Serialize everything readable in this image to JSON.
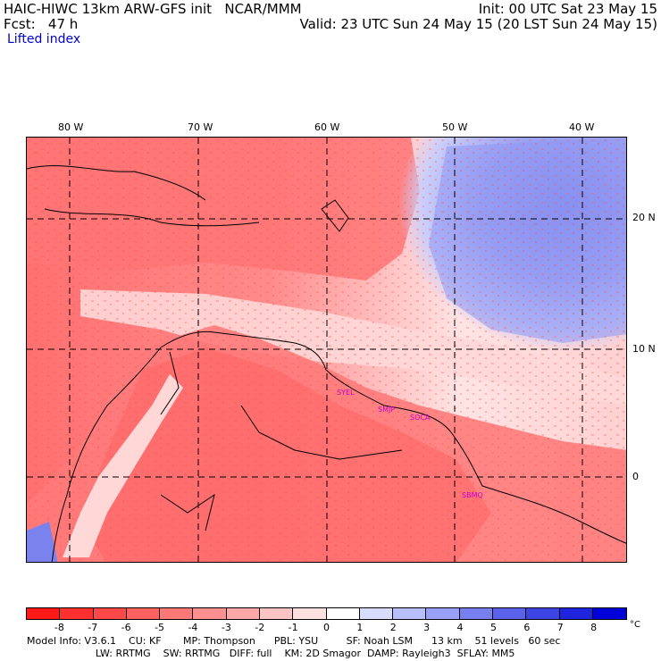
{
  "header": {
    "model_line": "HAIC-HIWC 13km ARW-GFS init   NCAR/MMM",
    "fcst_line": "Fcst:   47 h",
    "init_line": "Init: 00 UTC Sat 23 May 15",
    "valid_line": "Valid: 23 UTC Sun 24 May 15 (20 LST Sun 24 May 15)",
    "field_name": "Lifted index"
  },
  "map": {
    "lon_labels": [
      "80 W",
      "70 W",
      "60 W",
      "50 W",
      "40 W"
    ],
    "lat_labels": [
      "20 N",
      "10 N",
      "0"
    ],
    "stations": [
      "SYEL",
      "SMJP",
      "SOCA",
      "SBMQ"
    ]
  },
  "colorbar": {
    "unit": "°C",
    "labels": [
      "-8",
      "-7",
      "-6",
      "-5",
      "-4",
      "-3",
      "-2",
      "-1",
      "0",
      "1",
      "2",
      "3",
      "4",
      "5",
      "6",
      "7",
      "8"
    ],
    "colors": [
      "#ff1a1a",
      "#ff3030",
      "#ff4848",
      "#ff6060",
      "#ff7878",
      "#ff9090",
      "#ffa8a8",
      "#ffc4c4",
      "#ffe0e0",
      "#ffffff",
      "#d8dcff",
      "#b8bfff",
      "#98a0f8",
      "#7880f0",
      "#5a62ea",
      "#3c44e4",
      "#1f24de",
      "#0000d8"
    ]
  },
  "footer": {
    "line1": "Model Info: V3.6.1    CU: KF       MP: Thompson      PBL: YSU         SF: Noah LSM      13 km    51 levels   60 sec",
    "line2": "                      LW: RRTMG    SW: RRTMG   DIFF: full    KM: 2D Smagor  DAMP: Rayleigh3  SFLAY: MM5"
  }
}
